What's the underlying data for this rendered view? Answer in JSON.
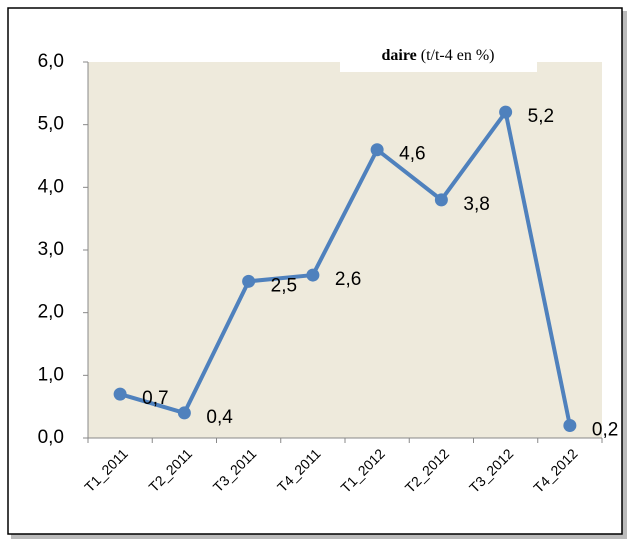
{
  "chart_data": {
    "type": "line",
    "title": [
      "daire",
      "(t/t-4 en %)"
    ],
    "categories": [
      "T1_2011",
      "T2_2011",
      "T3_2011",
      "T4_2011",
      "T1_2012",
      "T2_2012",
      "T3_2012",
      "T4_2012"
    ],
    "values": [
      0.7,
      0.4,
      2.5,
      2.6,
      4.6,
      3.8,
      5.2,
      0.2
    ],
    "value_labels": [
      "0,7",
      "0,4",
      "2,5",
      "2,6",
      "4,6",
      "3,8",
      "5,2",
      "0,2"
    ],
    "color": "#4f81bd",
    "ylim": [
      0,
      6
    ],
    "yticks": [
      {
        "value": 0,
        "label": "0,0"
      },
      {
        "value": 1,
        "label": "1,0"
      },
      {
        "value": 2,
        "label": "2,0"
      },
      {
        "value": 3,
        "label": "3,0"
      },
      {
        "value": 4,
        "label": "4,0"
      },
      {
        "value": 5,
        "label": "5,0"
      },
      {
        "value": 6,
        "label": "6,0"
      }
    ]
  }
}
